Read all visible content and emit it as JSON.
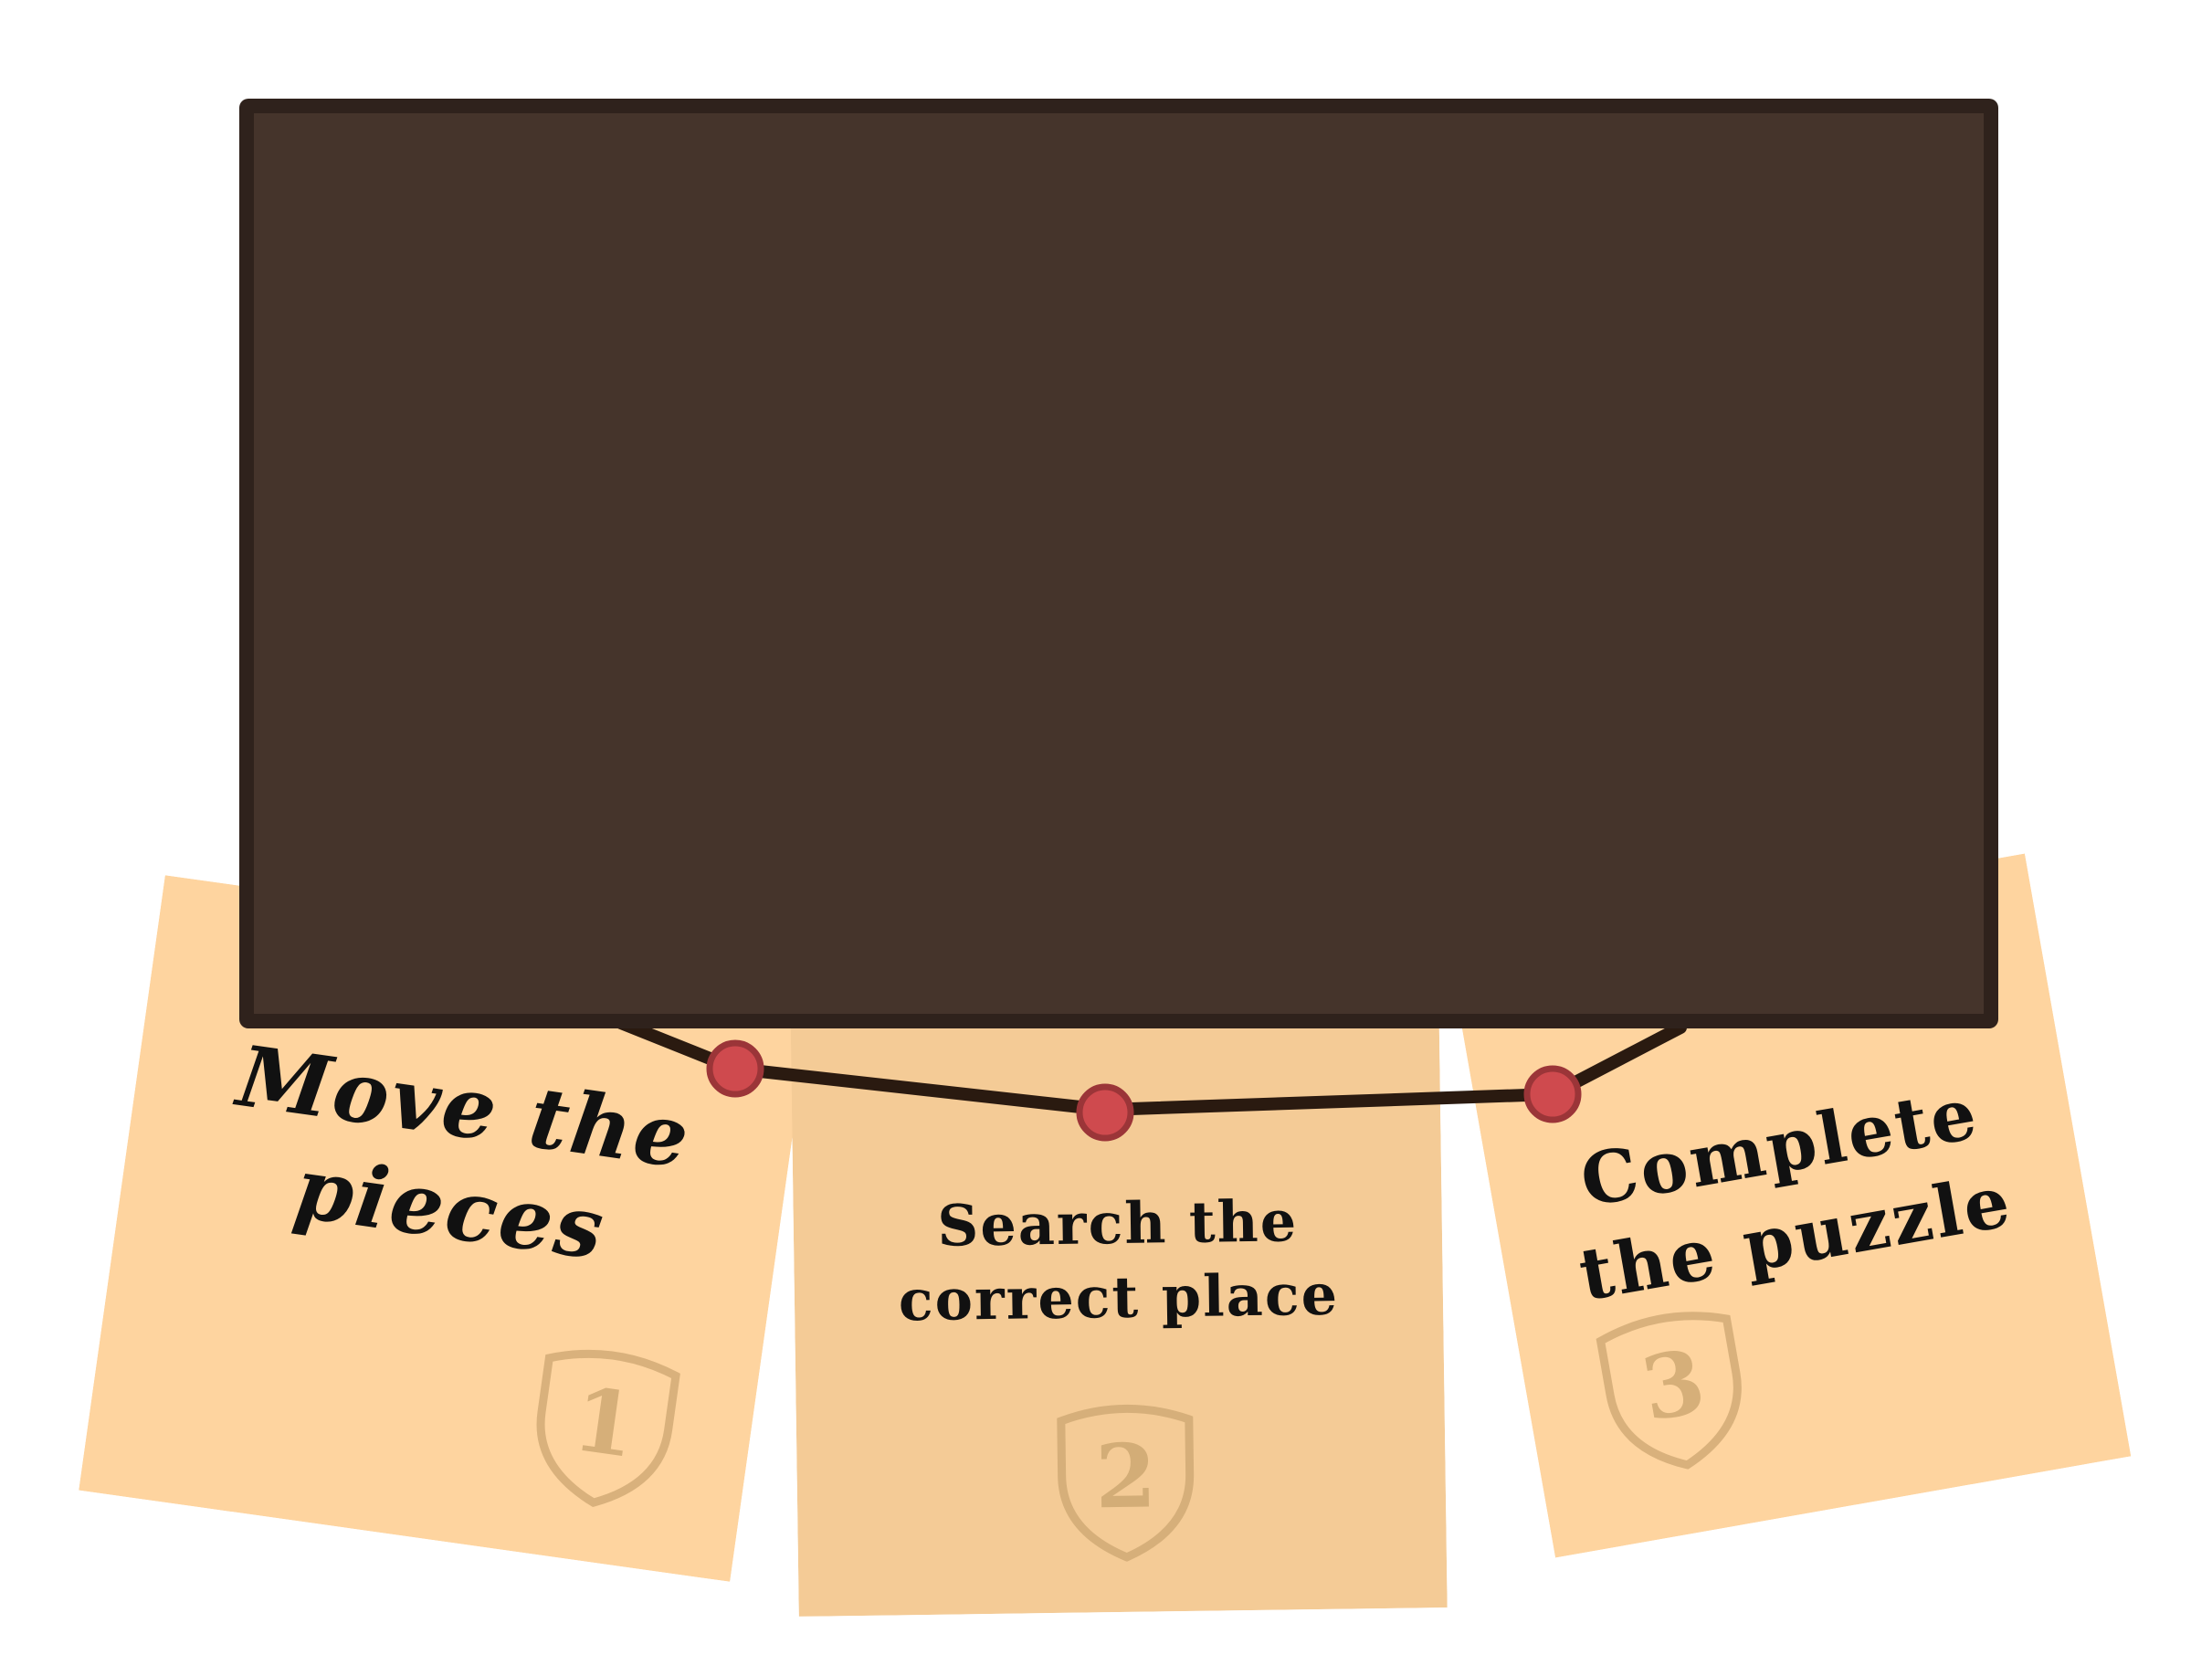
{
  "instructions": {
    "steps": [
      {
        "text": "Move the\npieces",
        "number": "1",
        "badge_icon": "shield-icon",
        "color": "#fed49f"
      },
      {
        "text": "Search the\ncorrect place",
        "number": "2",
        "badge_icon": "shield-icon",
        "color": "#f4cb96"
      },
      {
        "text": "Complete\nthe puzzle",
        "number": "3",
        "badge_icon": "shield-icon",
        "color": "#fed49f"
      }
    ]
  },
  "colors": {
    "board_fill": "#45342b",
    "board_border": "#2f221c",
    "wire": "#2a1a10",
    "pin_fill": "#cf4a4e",
    "pin_stroke": "#9b3538",
    "badge": "#c9a36d"
  }
}
